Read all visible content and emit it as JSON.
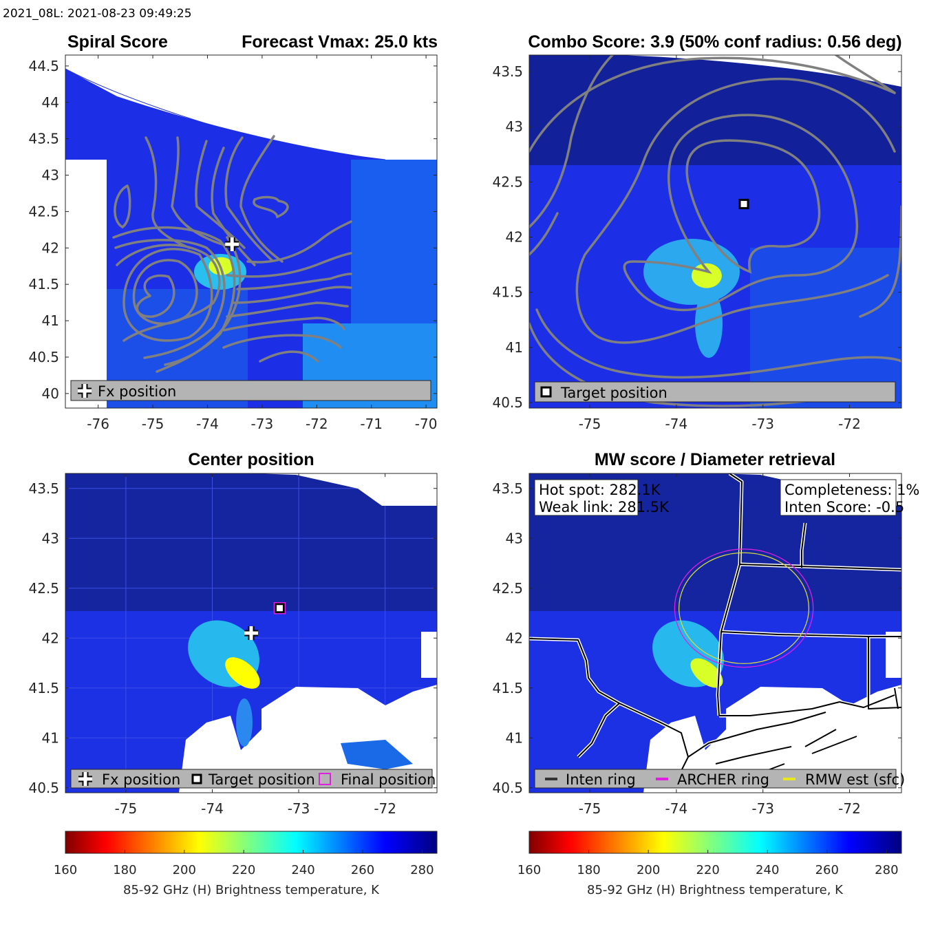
{
  "header": {
    "text": "2021_08L: 2021-08-23 09:49:25"
  },
  "colors": {
    "contour": "#808080",
    "legend_box": "#b4b4b4",
    "archer_ring": "#e020e0",
    "rmw_ring": "#d8d840",
    "inten_ring": "#333333",
    "final_marker": "#e020e0"
  },
  "colormap": {
    "name": "jet",
    "reversed": true,
    "stops": [
      "#800000",
      "#ff0000",
      "#ffff00",
      "#00ffff",
      "#0000ff",
      "#000080"
    ]
  },
  "chart_data": [
    {
      "type": "heatmap",
      "panel": "spiral",
      "title_left": "Spiral Score",
      "title_right": "Forecast Vmax: 25.0 kts",
      "xlim": [
        -76.6,
        -69.8
      ],
      "ylim": [
        39.8,
        44.65
      ],
      "xticks": [
        -76,
        -75,
        -74,
        -73,
        -72,
        -71,
        -70
      ],
      "yticks": [
        40,
        40.5,
        41,
        41.5,
        42,
        42.5,
        43,
        43.5,
        44,
        44.5
      ],
      "hotspot": {
        "lon": -73.75,
        "lat": 41.75,
        "tb": 210
      },
      "markers": [
        {
          "kind": "fx",
          "lon": -73.55,
          "lat": 42.05
        }
      ],
      "legend": [
        {
          "icon": "cross-icon",
          "label": "Fx position"
        }
      ],
      "contours": "spiral"
    },
    {
      "type": "heatmap",
      "panel": "combo",
      "title": "Combo Score: 3.9  (50% conf radius: 0.56 deg)",
      "xlim": [
        -75.7,
        -71.4
      ],
      "ylim": [
        40.45,
        43.65
      ],
      "xticks": [
        -75,
        -74,
        -73,
        -72
      ],
      "yticks": [
        40.5,
        41,
        41.5,
        42,
        42.5,
        43,
        43.5
      ],
      "hotspot": {
        "lon": -73.65,
        "lat": 41.65,
        "tb": 210
      },
      "markers": [
        {
          "kind": "target",
          "lon": -73.22,
          "lat": 42.3
        }
      ],
      "legend": [
        {
          "icon": "target-square-icon",
          "label": "Target position"
        }
      ],
      "contours": "combo"
    },
    {
      "type": "heatmap",
      "panel": "center",
      "title": "Center position",
      "xlim": [
        -75.7,
        -71.4
      ],
      "ylim": [
        40.45,
        43.65
      ],
      "xticks": [
        -75,
        -74,
        -73,
        -72
      ],
      "yticks": [
        40.5,
        41,
        41.5,
        42,
        42.5,
        43,
        43.5
      ],
      "hotspot": {
        "lon": -73.65,
        "lat": 41.65,
        "tb": 205
      },
      "markers": [
        {
          "kind": "fx",
          "lon": -73.55,
          "lat": 42.05
        },
        {
          "kind": "target",
          "lon": -73.22,
          "lat": 42.3
        },
        {
          "kind": "final",
          "lon": -73.22,
          "lat": 42.3
        }
      ],
      "legend": [
        {
          "icon": "cross-icon",
          "label": "Fx position"
        },
        {
          "icon": "target-square-icon",
          "label": "Target position"
        },
        {
          "icon": "final-square-icon",
          "label": "Final position"
        }
      ],
      "contours": "none"
    },
    {
      "type": "heatmap",
      "panel": "mw",
      "title": "MW score / Diameter retrieval",
      "xlim": [
        -75.7,
        -71.4
      ],
      "ylim": [
        40.45,
        43.65
      ],
      "xticks": [
        -75,
        -74,
        -73,
        -72
      ],
      "yticks": [
        40.5,
        41,
        41.5,
        42,
        42.5,
        43,
        43.5
      ],
      "hotspot": {
        "lon": -73.65,
        "lat": 41.65,
        "tb": 210
      },
      "rings": [
        {
          "kind": "archer",
          "lon": -73.22,
          "lat": 42.3,
          "radius_deg": 0.8
        },
        {
          "kind": "rmw",
          "lon": -73.22,
          "lat": 42.3,
          "radius_deg": 0.75
        }
      ],
      "annotations": {
        "hot_spot": "Hot spot: 282.1K",
        "weak_link": "Weak link: 281.5K",
        "completeness": "Completeness: 1%",
        "inten_score": "Inten Score: -0.5"
      },
      "legend": [
        {
          "icon": "inten-ring-line-icon",
          "label": "Inten ring"
        },
        {
          "icon": "archer-ring-line-icon",
          "label": "ARCHER ring"
        },
        {
          "icon": "rmw-line-icon",
          "label": "RMW est (sfc)"
        }
      ],
      "contours": "none"
    }
  ],
  "colorbar": {
    "min": 160,
    "max": 285,
    "ticks": [
      160,
      180,
      200,
      220,
      240,
      260,
      280
    ],
    "label": "85-92 GHz (H) Brightness temperature, K"
  }
}
